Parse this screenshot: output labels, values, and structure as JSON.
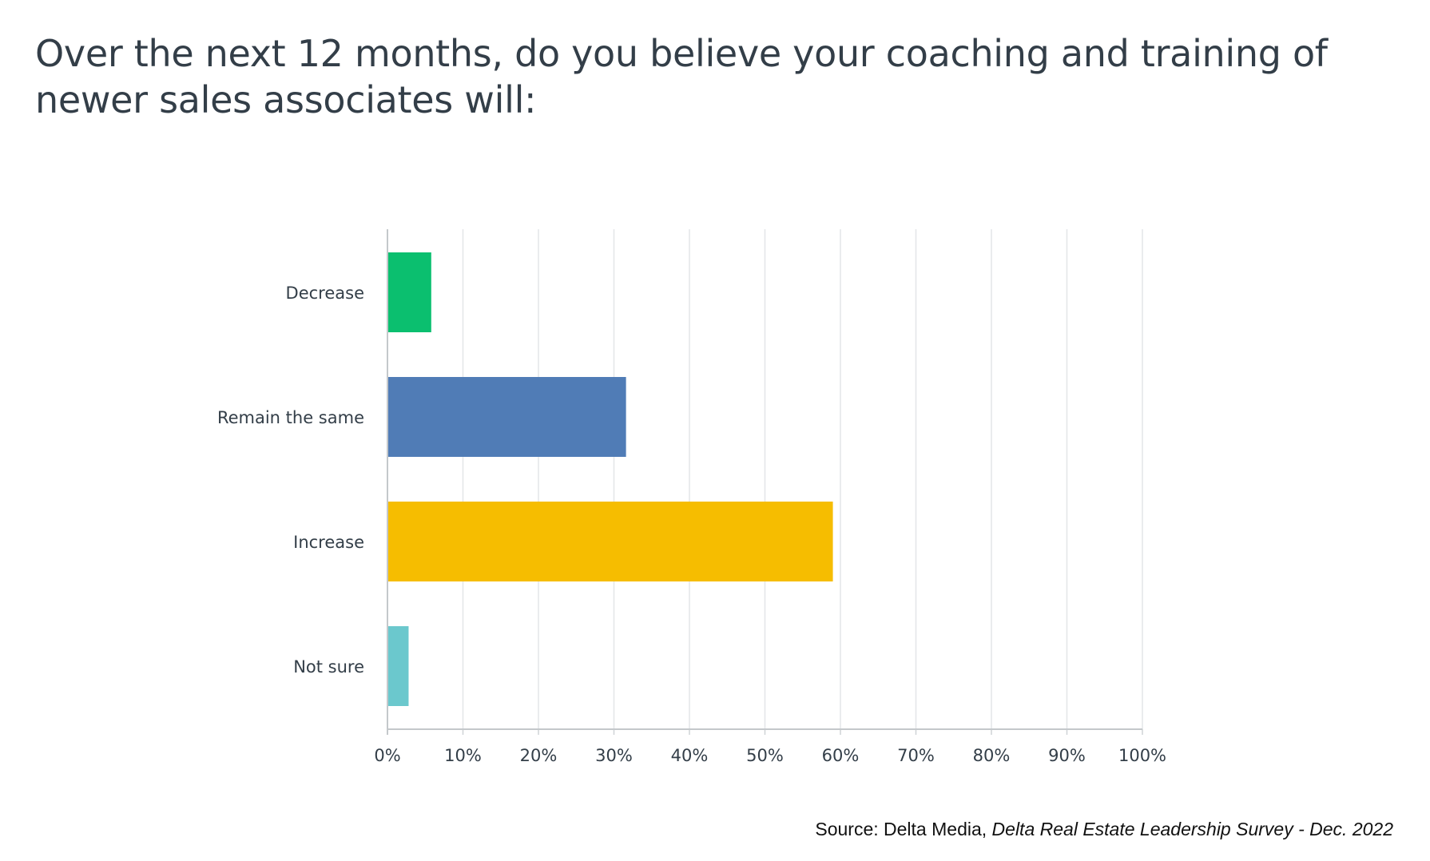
{
  "chart_data": {
    "type": "bar",
    "orientation": "horizontal",
    "title": "Over the next 12 months, do you believe your coaching and training of newer sales associates will:",
    "categories": [
      "Decrease",
      "Remain the same",
      "Increase",
      "Not sure"
    ],
    "values": [
      5.8,
      31.6,
      59.0,
      2.8
    ],
    "colors": [
      "#0bbf6f",
      "#507cb6",
      "#f6bd00",
      "#6bc8cd"
    ],
    "xlim": [
      0,
      100
    ],
    "xticks": [
      "0%",
      "10%",
      "20%",
      "30%",
      "40%",
      "50%",
      "60%",
      "70%",
      "80%",
      "90%",
      "100%"
    ],
    "grid": true,
    "legend": "none"
  },
  "source": {
    "prefix": "Source: Delta Media, ",
    "italic": "Delta Real Estate Leadership Survey - Dec. 2022"
  }
}
